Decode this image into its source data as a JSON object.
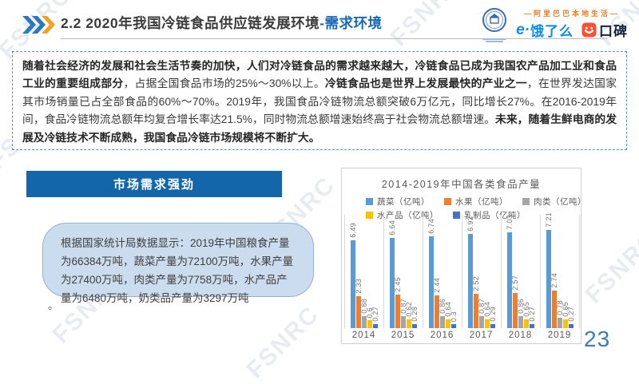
{
  "watermark": {
    "text": "FSNRC"
  },
  "header": {
    "title_main": "2.2 2020年我国冷链食品供应链发展环境",
    "title_accent": "-需求环境",
    "logos": {
      "alibaba_banner": "—阿里巴巴本地生活—",
      "eleme_mark": "e·",
      "eleme": "饿了么",
      "koubei": "口碑"
    }
  },
  "intro": {
    "segments": [
      {
        "bold": true,
        "text": "随着社会经济的发展和社会生活节奏的加快，人们对冷链食品的需求越来越大，冷链食品已成为我国农产品加工业和食品工业的重要组成部分"
      },
      {
        "bold": false,
        "text": "，占据全国食品市场的25%～30%以上。"
      },
      {
        "bold": true,
        "text": "冷链食品也是世界上发展最快的产业之一"
      },
      {
        "bold": false,
        "text": "，在世界发达国家其市场销量已占全部食品的60%～70%。2019年，我国食品冷链物流总额突破6万亿元，同比增长27%。在2016-2019年间，食品冷链物流总额年均复合增长率达21.5%，同时物流总额增速始终高于社会物流总额增速。"
      },
      {
        "bold": true,
        "text": "未来，随着生鲜电商的发展及冷链技术不断成熟，我国食品冷链市场规模将不断扩大。"
      }
    ]
  },
  "section": {
    "banner": "市场需求强劲",
    "bubble_text": "根据国家统计局数据显示：2019年中国粮食产量为66384万吨，蔬菜产量为72100万吨，水果产量为27400万吨，肉类产量为7758万吨，水产品产量为6480万吨，奶类品产量为3297万吨",
    "stray_period": "。"
  },
  "chart_data": {
    "type": "bar",
    "title": "2014-2019年中国各类食品产量",
    "categories": [
      "2014",
      "2015",
      "2016",
      "2017",
      "2018",
      "2019"
    ],
    "series": [
      {
        "name": "蔬菜（亿吨）",
        "color": "#5b9bd5",
        "values": [
          6.49,
          6.64,
          6.74,
          6.92,
          7.03,
          7.21
        ]
      },
      {
        "name": "水果（亿吨）",
        "color": "#ed7d31",
        "values": [
          2.33,
          2.45,
          2.44,
          2.52,
          2.57,
          2.74
        ]
      },
      {
        "name": "肉类（亿吨）",
        "color": "#a5a5a5",
        "values": [
          0.88,
          0.87,
          0.86,
          0.87,
          0.86,
          0.78
        ]
      },
      {
        "name": "水产品（亿吨）",
        "color": "#ffc000",
        "values": [
          0.6,
          0.62,
          0.64,
          0.64,
          0.65,
          0.65
        ]
      },
      {
        "name": "乳制品（亿吨）",
        "color": "#4472c4",
        "values": [
          0.27,
          0.28,
          0.3,
          0.29,
          0.27,
          0.27
        ]
      }
    ],
    "ylim": [
      0,
      8.2
    ],
    "grid": false,
    "legend_position": "top",
    "value_labels": "rotated-vertical"
  },
  "page_number": "23",
  "accent_colors": {
    "title_accent_blue": "#1769b8",
    "banner_blue": "#1366a9",
    "dashed_border_blue": "#4f93cf",
    "eleme_blue": "#0b8ee9",
    "koubei_orange": "#ff5132",
    "ali_orange": "#f07c21",
    "page_number_blue": "#3d7ab8"
  }
}
